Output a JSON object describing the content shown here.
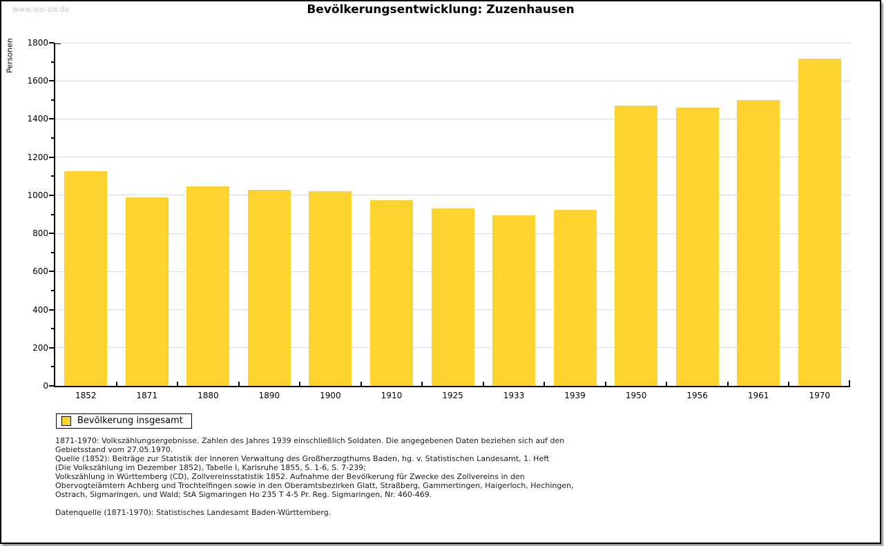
{
  "watermark": "www.leo-bw.de",
  "header": {
    "title": "Bevölkerungsentwicklung: Zuzenhausen"
  },
  "colors": {
    "bar": "#FDD32F",
    "grid": "#DDDDDD",
    "axis": "#000000",
    "watermark": "#C9C9C9",
    "frame_border": "#000000",
    "shadow": "#9A9A9A"
  },
  "legend": {
    "label": "Bevölkerung insgesamt"
  },
  "chart_data": {
    "type": "bar",
    "title": "Bevölkerungsentwicklung: Zuzenhausen",
    "xlabel": "",
    "ylabel": "Personen",
    "categories": [
      "1852",
      "1871",
      "1880",
      "1890",
      "1900",
      "1910",
      "1925",
      "1933",
      "1939",
      "1950",
      "1956",
      "1961",
      "1970"
    ],
    "values": [
      1125,
      990,
      1045,
      1030,
      1020,
      975,
      930,
      895,
      925,
      1470,
      1460,
      1500,
      1715
    ],
    "series": [
      {
        "name": "Bevölkerung insgesamt",
        "values": [
          1125,
          990,
          1045,
          1030,
          1020,
          975,
          930,
          895,
          925,
          1470,
          1460,
          1500,
          1715
        ]
      }
    ],
    "ylim": [
      0,
      1800
    ],
    "y_major_step": 200,
    "y_minor_step": 100,
    "grid": true,
    "legend_position": "bottom-left"
  },
  "footnotes": {
    "lines": [
      "1871-1970: Volkszählungsergebnisse. Zahlen des Jahres 1939 einschließlich Soldaten. Die angegebenen Daten beziehen sich auf den",
      "Gebietsstand vom 27.05.1970.",
      "Quelle (1852): Beiträge zur Statistik der Inneren Verwaltung des Großherzogthums Baden, hg. v. Statistischen Landesamt, 1. Heft",
      "(Die Volkszählung im Dezember 1852), Tabelle I, Karlsruhe 1855, S. 1-6, S. 7-239;",
      "Volkszählung in Württemberg (CD), Zollvereinsstatistik 1852. Aufnahme der Bevölkerung für Zwecke des Zollvereins in den",
      "Obervogteiämtern Achberg und Trochtelfingen sowie in den Oberamtsbezirken Glatt, Straßberg, Gammertingen, Haigerloch, Hechingen,",
      "Ostrach, Sigmaringen, und Wald; StA Sigmaringen Ho 235 T 4-5 Pr. Reg. Sigmaringen, Nr. 460-469.",
      "",
      "Datenquelle (1871-1970): Statistisches Landesamt Baden-Württemberg."
    ]
  }
}
